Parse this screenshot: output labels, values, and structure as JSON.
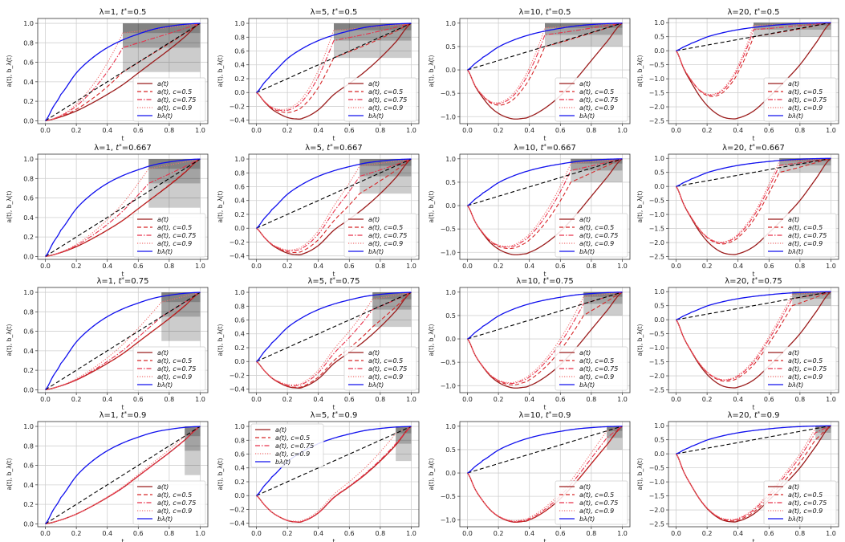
{
  "chart_data": {
    "type": "line",
    "layout": "4x4 grid",
    "xlabel": "t",
    "ylabel": "a(t), b_λ(t)",
    "x_ticks": [
      "0.0",
      "0.2",
      "0.4",
      "0.6",
      "0.8",
      "1.0"
    ],
    "xlim": [
      0,
      1
    ],
    "grid": true,
    "lambdas": [
      1,
      5,
      10,
      20
    ],
    "t_stars": [
      0.5,
      0.667,
      0.75,
      0.9
    ],
    "c_values": [
      0.5,
      0.75,
      0.9
    ],
    "shaded_region_lower_bounds": [
      0.5,
      0.75,
      0.9
    ],
    "legend": [
      {
        "label": "a(t)",
        "style": "solid",
        "color": "#9b1c1c"
      },
      {
        "label": "a(t), c=0.5",
        "style": "dashed",
        "color": "#d62728"
      },
      {
        "label": "a(t), c=0.75",
        "style": "dashdot",
        "color": "#e8304a"
      },
      {
        "label": "a(t), c=0.9",
        "style": "dotted",
        "color": "#f07070"
      },
      {
        "label": "bλ(t)",
        "style": "solid",
        "color": "#1010ee"
      }
    ],
    "reference_line": {
      "label": "t",
      "style": "dashed",
      "color": "#000000"
    },
    "b_curve": {
      "x": [
        0,
        0.05,
        0.1,
        0.2,
        0.3,
        0.4,
        0.5,
        0.6,
        0.7,
        0.8,
        0.9,
        1.0
      ],
      "y": [
        0,
        0.14,
        0.27,
        0.49,
        0.64,
        0.75,
        0.83,
        0.89,
        0.94,
        0.97,
        0.99,
        1.0
      ]
    },
    "a_curves": {
      "1": {
        "x": [
          0,
          0.1,
          0.2,
          0.3,
          0.4,
          0.5,
          0.6,
          0.7,
          0.8,
          0.9,
          1.0
        ],
        "y": [
          0,
          0.04,
          0.1,
          0.18,
          0.27,
          0.37,
          0.49,
          0.61,
          0.73,
          0.86,
          1.0
        ]
      },
      "5": {
        "x": [
          0,
          0.05,
          0.1,
          0.15,
          0.2,
          0.25,
          0.3,
          0.4,
          0.5,
          0.6,
          0.7,
          0.8,
          0.9,
          1.0
        ],
        "y": [
          0,
          -0.13,
          -0.24,
          -0.31,
          -0.36,
          -0.38,
          -0.37,
          -0.25,
          -0.03,
          0.13,
          0.3,
          0.5,
          0.73,
          1.0
        ]
      },
      "10": {
        "x": [
          0,
          0.05,
          0.1,
          0.15,
          0.2,
          0.25,
          0.3,
          0.35,
          0.4,
          0.5,
          0.6,
          0.7,
          0.8,
          0.9,
          1.0
        ],
        "y": [
          0,
          -0.35,
          -0.6,
          -0.8,
          -0.93,
          -1.01,
          -1.05,
          -1.04,
          -1.0,
          -0.82,
          -0.55,
          -0.2,
          0.2,
          0.6,
          1.0
        ]
      },
      "20": {
        "x": [
          0,
          0.05,
          0.1,
          0.15,
          0.2,
          0.25,
          0.3,
          0.35,
          0.4,
          0.5,
          0.6,
          0.7,
          0.8,
          0.9,
          1.0
        ],
        "y": [
          0,
          -0.65,
          -1.15,
          -1.6,
          -1.95,
          -2.2,
          -2.36,
          -2.42,
          -2.4,
          -2.15,
          -1.65,
          -1.1,
          -0.5,
          0.25,
          1.0
        ]
      }
    },
    "panels": [
      {
        "title_prefix": "λ=1, ",
        "tstar_label": "0.5",
        "lambda": 1,
        "tstar": 0.5,
        "ylim": [
          -0.03,
          1.05
        ],
        "y_ticks": [
          0.0,
          0.2,
          0.4,
          0.6,
          0.8,
          1.0
        ],
        "legend_loc": "lower-right"
      },
      {
        "title_prefix": "λ=5, ",
        "tstar_label": "0.5",
        "lambda": 5,
        "tstar": 0.5,
        "ylim": [
          -0.45,
          1.07
        ],
        "y_ticks": [
          -0.4,
          -0.2,
          0.0,
          0.2,
          0.4,
          0.6,
          0.8,
          1.0
        ],
        "legend_loc": "lower-right"
      },
      {
        "title_prefix": "λ=10, ",
        "tstar_label": "0.5",
        "lambda": 10,
        "tstar": 0.5,
        "ylim": [
          -1.15,
          1.1
        ],
        "y_ticks": [
          -1.0,
          -0.5,
          0.0,
          0.5,
          1.0
        ],
        "legend_loc": "lower-right"
      },
      {
        "title_prefix": "λ=20, ",
        "tstar_label": "0.5",
        "lambda": 20,
        "tstar": 0.5,
        "ylim": [
          -2.6,
          1.15
        ],
        "y_ticks": [
          -2.5,
          -2.0,
          -1.5,
          -1.0,
          -0.5,
          0.0,
          0.5,
          1.0
        ],
        "legend_loc": "lower-right"
      },
      {
        "title_prefix": "λ=1, ",
        "tstar_label": "0.667",
        "lambda": 1,
        "tstar": 0.667,
        "ylim": [
          -0.03,
          1.05
        ],
        "y_ticks": [
          0.0,
          0.2,
          0.4,
          0.6,
          0.8,
          1.0
        ],
        "legend_loc": "lower-right"
      },
      {
        "title_prefix": "λ=5, ",
        "tstar_label": "0.667",
        "lambda": 5,
        "tstar": 0.667,
        "ylim": [
          -0.45,
          1.07
        ],
        "y_ticks": [
          -0.4,
          -0.2,
          0.0,
          0.2,
          0.4,
          0.6,
          0.8,
          1.0
        ],
        "legend_loc": "lower-right"
      },
      {
        "title_prefix": "λ=10, ",
        "tstar_label": "0.667",
        "lambda": 10,
        "tstar": 0.667,
        "ylim": [
          -1.15,
          1.1
        ],
        "y_ticks": [
          -1.0,
          -0.5,
          0.0,
          0.5,
          1.0
        ],
        "legend_loc": "lower-right"
      },
      {
        "title_prefix": "λ=20, ",
        "tstar_label": "0.667",
        "lambda": 20,
        "tstar": 0.667,
        "ylim": [
          -2.6,
          1.15
        ],
        "y_ticks": [
          -2.5,
          -2.0,
          -1.5,
          -1.0,
          -0.5,
          0.0,
          0.5,
          1.0
        ],
        "legend_loc": "lower-right"
      },
      {
        "title_prefix": "λ=1, ",
        "tstar_label": "0.75",
        "lambda": 1,
        "tstar": 0.75,
        "ylim": [
          -0.03,
          1.05
        ],
        "y_ticks": [
          0.0,
          0.2,
          0.4,
          0.6,
          0.8,
          1.0
        ],
        "legend_loc": "lower-right"
      },
      {
        "title_prefix": "λ=5, ",
        "tstar_label": "0.75",
        "lambda": 5,
        "tstar": 0.75,
        "ylim": [
          -0.45,
          1.07
        ],
        "y_ticks": [
          -0.4,
          -0.2,
          0.0,
          0.2,
          0.4,
          0.6,
          0.8,
          1.0
        ],
        "legend_loc": "lower-right"
      },
      {
        "title_prefix": "λ=10, ",
        "tstar_label": "0.75",
        "lambda": 10,
        "tstar": 0.75,
        "ylim": [
          -1.15,
          1.1
        ],
        "y_ticks": [
          -1.0,
          -0.5,
          0.0,
          0.5,
          1.0
        ],
        "legend_loc": "lower-right"
      },
      {
        "title_prefix": "λ=20, ",
        "tstar_label": "0.75",
        "lambda": 20,
        "tstar": 0.75,
        "ylim": [
          -2.6,
          1.15
        ],
        "y_ticks": [
          -2.5,
          -2.0,
          -1.5,
          -1.0,
          -0.5,
          0.0,
          0.5,
          1.0
        ],
        "legend_loc": "lower-right"
      },
      {
        "title_prefix": "λ=1, ",
        "tstar_label": "0.9",
        "lambda": 1,
        "tstar": 0.9,
        "ylim": [
          -0.03,
          1.05
        ],
        "y_ticks": [
          0.0,
          0.2,
          0.4,
          0.6,
          0.8,
          1.0
        ],
        "legend_loc": "lower-right"
      },
      {
        "title_prefix": "λ=5, ",
        "tstar_label": "0.9",
        "lambda": 5,
        "tstar": 0.9,
        "ylim": [
          -0.45,
          1.07
        ],
        "y_ticks": [
          -0.4,
          -0.2,
          0.0,
          0.2,
          0.4,
          0.6,
          0.8,
          1.0
        ],
        "legend_loc": "upper-left"
      },
      {
        "title_prefix": "λ=10, ",
        "tstar_label": "0.9",
        "lambda": 10,
        "tstar": 0.9,
        "ylim": [
          -1.15,
          1.1
        ],
        "y_ticks": [
          -1.0,
          -0.5,
          0.0,
          0.5,
          1.0
        ],
        "legend_loc": "lower-right"
      },
      {
        "title_prefix": "λ=20, ",
        "tstar_label": "0.9",
        "lambda": 20,
        "tstar": 0.9,
        "ylim": [
          -2.6,
          1.15
        ],
        "y_ticks": [
          -2.5,
          -2.0,
          -1.5,
          -1.0,
          -0.5,
          0.0,
          0.5,
          1.0
        ],
        "legend_loc": "lower-right"
      }
    ]
  }
}
